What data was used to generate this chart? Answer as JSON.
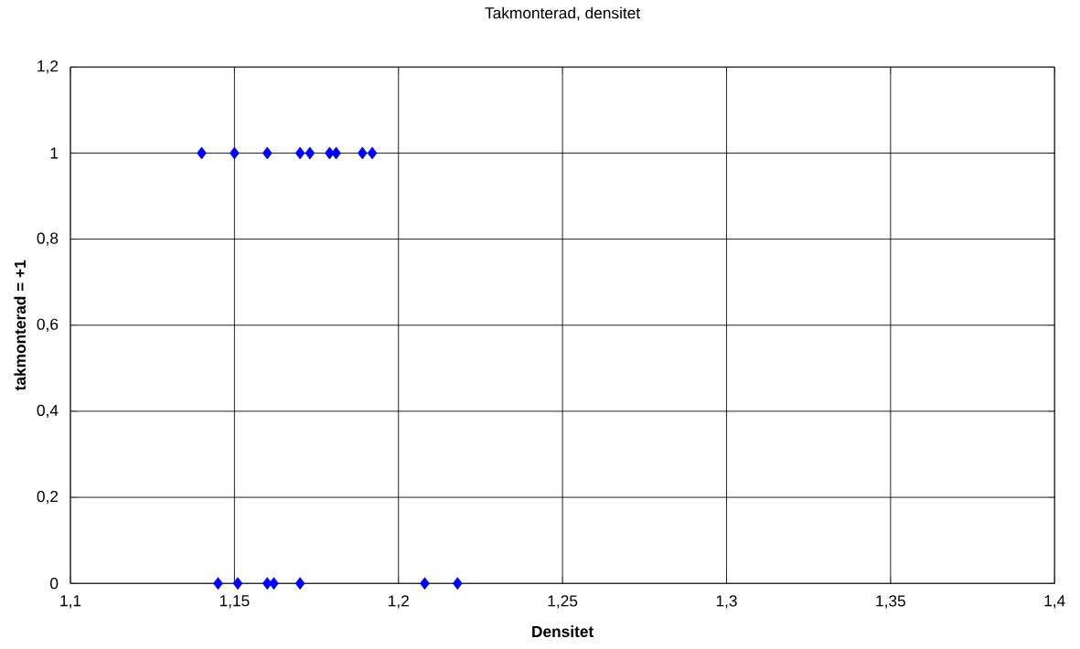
{
  "chart_data": {
    "type": "scatter",
    "title": "Takmonterad, densitet",
    "xlabel": "Densitet",
    "ylabel": "takmonterad = +1",
    "series": [
      {
        "color": "#0000ff",
        "x": [
          1.14,
          1.15,
          1.16,
          1.17,
          1.173,
          1.179,
          1.181,
          1.189,
          1.192,
          1.145,
          1.151,
          1.16,
          1.162,
          1.17,
          1.208,
          1.218
        ],
        "values": [
          1,
          1,
          1,
          1,
          1,
          1,
          1,
          1,
          1,
          0,
          0,
          0,
          0,
          0,
          0,
          0
        ]
      }
    ],
    "xlim": [
      1.1,
      1.4
    ],
    "ylim": [
      0,
      1.2
    ],
    "xticks": [
      {
        "value": 1.1,
        "label": "1,1"
      },
      {
        "value": 1.15,
        "label": "1,15"
      },
      {
        "value": 1.2,
        "label": "1,2"
      },
      {
        "value": 1.25,
        "label": "1,25"
      },
      {
        "value": 1.3,
        "label": "1,3"
      },
      {
        "value": 1.35,
        "label": "1,35"
      },
      {
        "value": 1.4,
        "label": "1,4"
      }
    ],
    "yticks": [
      0,
      {
        "value": 0.2,
        "label": "0,2"
      },
      {
        "value": 0.4,
        "label": "0,4"
      },
      {
        "value": 0.6,
        "label": "0,6"
      },
      {
        "value": 0.8,
        "label": "0,8"
      },
      1,
      {
        "value": 1.2,
        "label": "1,2"
      }
    ],
    "grid": true,
    "marker": "diamond"
  }
}
